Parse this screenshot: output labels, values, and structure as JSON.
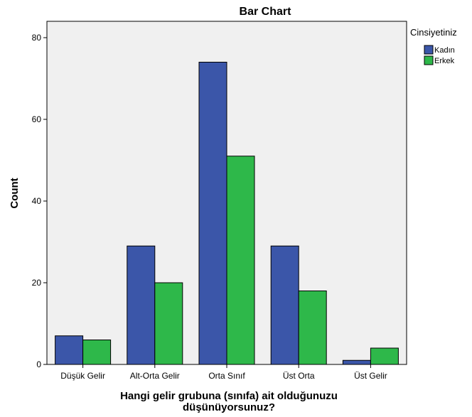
{
  "chart_data": {
    "type": "bar",
    "title": "Bar Chart",
    "xlabel_lines": [
      "Hangi gelir grubuna (sınıfa) ait olduğunuzu",
      "düşünüyorsunuz?"
    ],
    "ylabel": "Count",
    "ylim": [
      0,
      84
    ],
    "yticks": [
      0,
      20,
      40,
      60,
      80
    ],
    "categories": [
      "Düşük Gelir",
      "Alt-Orta Gelir",
      "Orta Sınıf",
      "Üst Orta",
      "Üst Gelir"
    ],
    "series": [
      {
        "name": "Kadın",
        "color": "#3b56a9",
        "values": [
          7,
          29,
          74,
          29,
          1
        ]
      },
      {
        "name": "Erkek",
        "color": "#2eb84a",
        "values": [
          6,
          20,
          51,
          18,
          4
        ]
      }
    ],
    "legend_title": "Cinsiyetiniz",
    "legend_position": "top-right",
    "plot_background": "#f0f0f0",
    "grid": false
  }
}
